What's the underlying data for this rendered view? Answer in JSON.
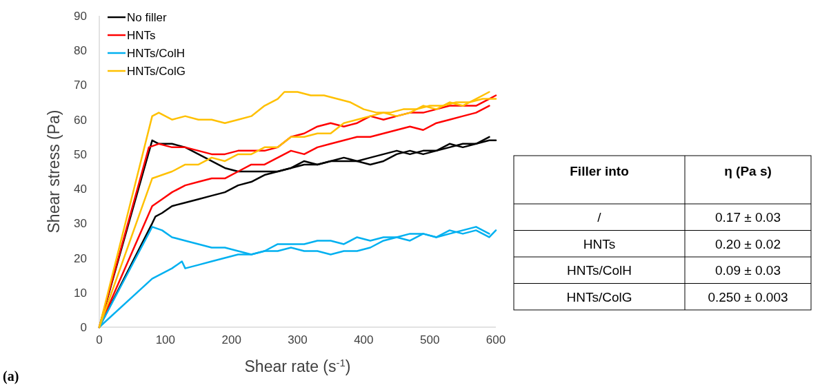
{
  "chart_data": [
    {
      "type": "line",
      "xlabel": "Shear rate (s$^{-1}$)",
      "ylabel": "Shear stress (Pa)",
      "xlim": [
        0,
        600
      ],
      "xticks": [
        0,
        100,
        200,
        300,
        400,
        500,
        600
      ],
      "ylim": [
        0,
        90
      ],
      "yticks": [
        0,
        10,
        20,
        30,
        40,
        50,
        60,
        70,
        80,
        90
      ],
      "legend": "top left",
      "grid": false,
      "marker": "none",
      "line_style": "solid",
      "annotations": [
        "(a)"
      ],
      "series": [
        {
          "name": "No filler",
          "color": "#000000",
          "x": [
            0,
            80,
            90,
            110,
            130,
            150,
            170,
            190,
            210,
            230,
            250,
            270,
            290,
            310,
            330,
            350,
            370,
            390,
            410,
            430,
            450,
            470,
            490,
            510,
            530,
            550,
            570,
            590,
            600
          ],
          "values": [
            0,
            54,
            53,
            53,
            52,
            50,
            48,
            46,
            45,
            45,
            45,
            45,
            46,
            48,
            47,
            48,
            49,
            48,
            47,
            48,
            50,
            51,
            50,
            51,
            52,
            53,
            53,
            54,
            54
          ]
        },
        {
          "color": "#000000",
          "x": [
            0,
            80,
            85,
            95,
            110,
            130,
            150,
            170,
            190,
            210,
            230,
            250,
            270,
            290,
            310,
            330,
            350,
            370,
            390,
            410,
            430,
            450,
            470,
            490,
            510,
            530,
            550,
            570,
            590
          ],
          "values": [
            0,
            30,
            32,
            33,
            35,
            36,
            37,
            38,
            39,
            41,
            42,
            44,
            45,
            46,
            47,
            47,
            48,
            48,
            48,
            49,
            50,
            51,
            50,
            51,
            51,
            53,
            52,
            53,
            55
          ]
        },
        {
          "name": "HNTs",
          "color": "#ff0000",
          "x": [
            0,
            75,
            90,
            110,
            130,
            150,
            170,
            190,
            210,
            230,
            250,
            270,
            290,
            310,
            330,
            350,
            370,
            390,
            410,
            430,
            450,
            470,
            490,
            510,
            530,
            550,
            570,
            590,
            600
          ],
          "values": [
            0,
            52,
            53,
            52,
            52,
            51,
            50,
            50,
            51,
            51,
            51,
            52,
            55,
            56,
            58,
            59,
            58,
            59,
            61,
            60,
            61,
            62,
            62,
            63,
            64,
            64,
            64,
            66,
            67
          ]
        },
        {
          "color": "#ff0000",
          "x": [
            0,
            80,
            95,
            110,
            130,
            150,
            170,
            190,
            210,
            230,
            250,
            270,
            290,
            310,
            330,
            350,
            370,
            390,
            410,
            430,
            450,
            470,
            490,
            510,
            530,
            550,
            570,
            590
          ],
          "values": [
            0,
            35,
            37,
            39,
            41,
            42,
            43,
            43,
            45,
            47,
            47,
            49,
            51,
            50,
            52,
            53,
            54,
            55,
            55,
            56,
            57,
            58,
            57,
            59,
            60,
            61,
            62,
            64
          ]
        },
        {
          "name": "HNTs/ColH",
          "color": "#00b0f0",
          "x": [
            0,
            80,
            95,
            110,
            130,
            150,
            170,
            190,
            210,
            230,
            250,
            270,
            290,
            310,
            330,
            350,
            370,
            390,
            410,
            430,
            450,
            470,
            490,
            510,
            530,
            550,
            570,
            590,
            600
          ],
          "values": [
            0,
            29,
            28,
            26,
            25,
            24,
            23,
            23,
            22,
            21,
            22,
            24,
            24,
            24,
            25,
            25,
            24,
            26,
            25,
            26,
            26,
            27,
            27,
            26,
            28,
            27,
            28,
            26,
            28
          ]
        },
        {
          "color": "#00b0f0",
          "x": [
            0,
            80,
            90,
            110,
            125,
            130,
            150,
            170,
            190,
            210,
            230,
            250,
            270,
            290,
            310,
            330,
            350,
            370,
            390,
            410,
            430,
            450,
            470,
            490,
            510,
            530,
            550,
            570,
            590
          ],
          "values": [
            0,
            14,
            15,
            17,
            19,
            17,
            18,
            19,
            20,
            21,
            21,
            22,
            22,
            23,
            22,
            22,
            21,
            22,
            22,
            23,
            25,
            26,
            25,
            27,
            26,
            27,
            28,
            29,
            27
          ]
        },
        {
          "name": "HNTs/ColG",
          "color": "#ffc000",
          "x": [
            0,
            80,
            90,
            110,
            130,
            150,
            170,
            190,
            210,
            230,
            250,
            270,
            280,
            300,
            320,
            340,
            360,
            380,
            400,
            420,
            440,
            460,
            480,
            500,
            520,
            540,
            560,
            580,
            600
          ],
          "values": [
            0,
            61,
            62,
            60,
            61,
            60,
            60,
            59,
            60,
            61,
            64,
            66,
            68,
            68,
            67,
            67,
            66,
            65,
            63,
            62,
            62,
            63,
            63,
            64,
            64,
            65,
            65,
            66,
            66
          ]
        },
        {
          "color": "#ffc000",
          "x": [
            0,
            80,
            95,
            110,
            130,
            150,
            170,
            190,
            210,
            230,
            250,
            270,
            290,
            310,
            330,
            350,
            370,
            390,
            410,
            430,
            450,
            470,
            490,
            510,
            530,
            550,
            570,
            590
          ],
          "values": [
            0,
            43,
            44,
            45,
            47,
            47,
            49,
            48,
            50,
            50,
            52,
            52,
            55,
            55,
            56,
            56,
            59,
            60,
            61,
            62,
            61,
            62,
            64,
            63,
            65,
            64,
            66,
            68
          ]
        }
      ]
    },
    {
      "type": "other",
      "xlabel": "Filler into",
      "ylabel": "η (Pa s)",
      "categories": [
        "/",
        "HNTs",
        "HNTs/ColH",
        "HNTs/ColG"
      ],
      "value_labels": [
        "0.17 ± 0.03",
        "0.20 ± 0.02",
        "0.09 ± 0.03",
        "0.250 ± 0.003"
      ]
    }
  ]
}
